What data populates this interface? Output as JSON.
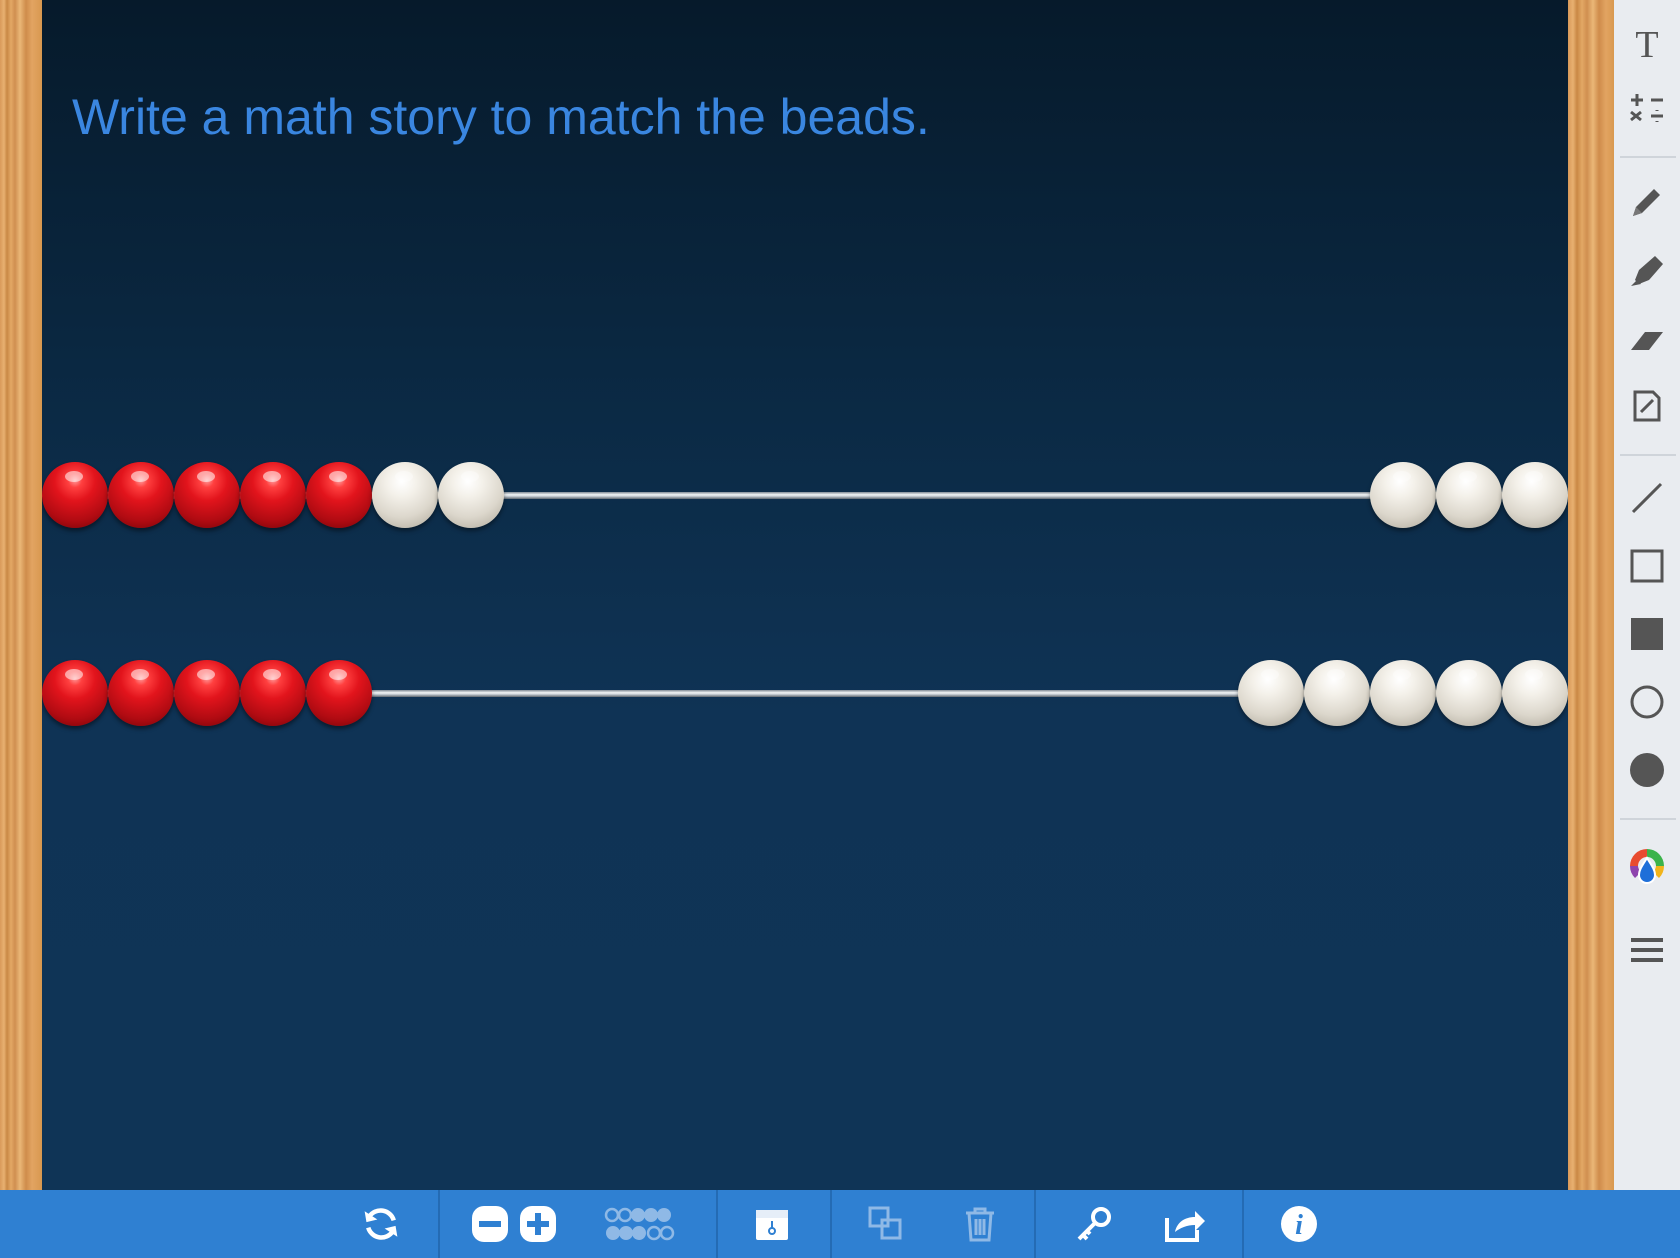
{
  "board": {
    "prompt": "Write a math story to match the beads."
  },
  "rekenrek": {
    "rows": [
      {
        "left_red": 5,
        "left_white": 2,
        "right_white": 3
      },
      {
        "left_red": 5,
        "left_white": 0,
        "right_white": 5
      }
    ],
    "colors": {
      "red": "#e2141c",
      "white": "#efece4",
      "board": "#0f3355",
      "prompt": "#3a86e0"
    }
  },
  "sidebar": {
    "tools": [
      "text-tool-icon",
      "math-symbols-icon",
      "pencil-icon",
      "marker-icon",
      "eraser-icon",
      "note-icon",
      "line-icon",
      "rectangle-icon",
      "filled-rectangle-icon",
      "circle-icon",
      "filled-circle-icon",
      "color-palette-icon",
      "menu-icon"
    ]
  },
  "bottombar": {
    "buttons": [
      "reset-icon",
      "remove-row-icon",
      "add-row-icon",
      "bead-count-icon",
      "cover-icon",
      "duplicate-icon",
      "trash-icon",
      "key-icon",
      "share-icon",
      "info-icon"
    ],
    "info_label": "i"
  }
}
